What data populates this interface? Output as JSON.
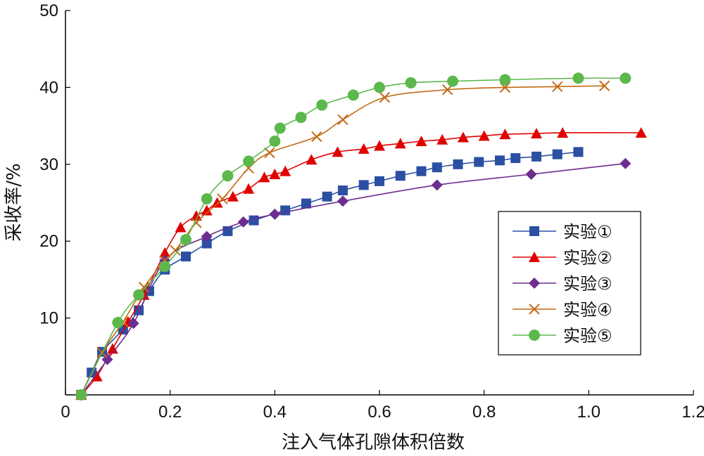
{
  "chart_data": {
    "type": "line",
    "xlabel": "注入气体孔隙体积倍数",
    "ylabel": "采收率/%",
    "xlim": [
      0,
      1.2
    ],
    "ylim": [
      0,
      50
    ],
    "x_ticks": [
      "0",
      "0.2",
      "0.4",
      "0.6",
      "0.8",
      "1.0",
      "1.2"
    ],
    "y_ticks": [
      "10",
      "20",
      "30",
      "40",
      "50"
    ],
    "grid": false,
    "legend_position": "right",
    "series": [
      {
        "name": "实验①",
        "color": "#2b4fa3",
        "marker": "square",
        "x": [
          0.03,
          0.05,
          0.07,
          0.11,
          0.14,
          0.16,
          0.19,
          0.23,
          0.27,
          0.31,
          0.36,
          0.42,
          0.46,
          0.5,
          0.53,
          0.57,
          0.6,
          0.64,
          0.68,
          0.71,
          0.75,
          0.79,
          0.83,
          0.86,
          0.9,
          0.94,
          0.98
        ],
        "y": [
          0.0,
          2.9,
          5.6,
          8.5,
          11.0,
          13.5,
          16.3,
          18.0,
          19.7,
          21.3,
          22.7,
          24.0,
          24.9,
          25.8,
          26.6,
          27.3,
          27.8,
          28.5,
          29.1,
          29.6,
          30.0,
          30.3,
          30.5,
          30.8,
          31.0,
          31.3,
          31.6
        ]
      },
      {
        "name": "实验②",
        "color": "#e00000",
        "marker": "triangle",
        "x": [
          0.03,
          0.06,
          0.09,
          0.12,
          0.15,
          0.19,
          0.22,
          0.25,
          0.27,
          0.29,
          0.32,
          0.35,
          0.38,
          0.4,
          0.42,
          0.47,
          0.52,
          0.57,
          0.6,
          0.64,
          0.68,
          0.72,
          0.76,
          0.8,
          0.84,
          0.9,
          0.95,
          1.1
        ],
        "y": [
          0.0,
          2.4,
          6.0,
          9.5,
          13.0,
          18.5,
          21.8,
          23.3,
          24.0,
          25.0,
          25.8,
          26.8,
          28.3,
          28.7,
          29.1,
          30.6,
          31.6,
          32.0,
          32.4,
          32.7,
          33.0,
          33.2,
          33.5,
          33.7,
          33.9,
          34.0,
          34.1,
          34.1
        ]
      },
      {
        "name": "实验③",
        "color": "#6d2d8f",
        "marker": "diamond",
        "x": [
          0.03,
          0.08,
          0.13,
          0.19,
          0.27,
          0.34,
          0.4,
          0.53,
          0.71,
          0.89,
          1.07
        ],
        "y": [
          0.0,
          4.6,
          9.3,
          17.5,
          20.6,
          22.5,
          23.5,
          25.2,
          27.3,
          28.7,
          30.1
        ]
      },
      {
        "name": "实验④",
        "color": "#c46a16",
        "marker": "x",
        "x": [
          0.03,
          0.07,
          0.11,
          0.15,
          0.19,
          0.21,
          0.25,
          0.3,
          0.35,
          0.39,
          0.48,
          0.53,
          0.61,
          0.73,
          0.84,
          0.94,
          1.03
        ],
        "y": [
          0.0,
          5.5,
          9.5,
          14.0,
          17.5,
          18.8,
          22.4,
          25.5,
          29.5,
          31.5,
          33.6,
          35.8,
          38.7,
          39.7,
          40.0,
          40.1,
          40.2
        ]
      },
      {
        "name": "实验⑤",
        "color": "#5cb84c",
        "marker": "circle",
        "x": [
          0.03,
          0.1,
          0.14,
          0.19,
          0.23,
          0.27,
          0.31,
          0.35,
          0.4,
          0.41,
          0.45,
          0.49,
          0.55,
          0.6,
          0.66,
          0.74,
          0.84,
          0.98,
          1.07
        ],
        "y": [
          0.0,
          9.4,
          13.0,
          16.7,
          20.2,
          25.5,
          28.5,
          30.4,
          33.0,
          34.7,
          36.1,
          37.7,
          39.0,
          40.0,
          40.6,
          40.8,
          41.0,
          41.2,
          41.2
        ]
      }
    ]
  }
}
